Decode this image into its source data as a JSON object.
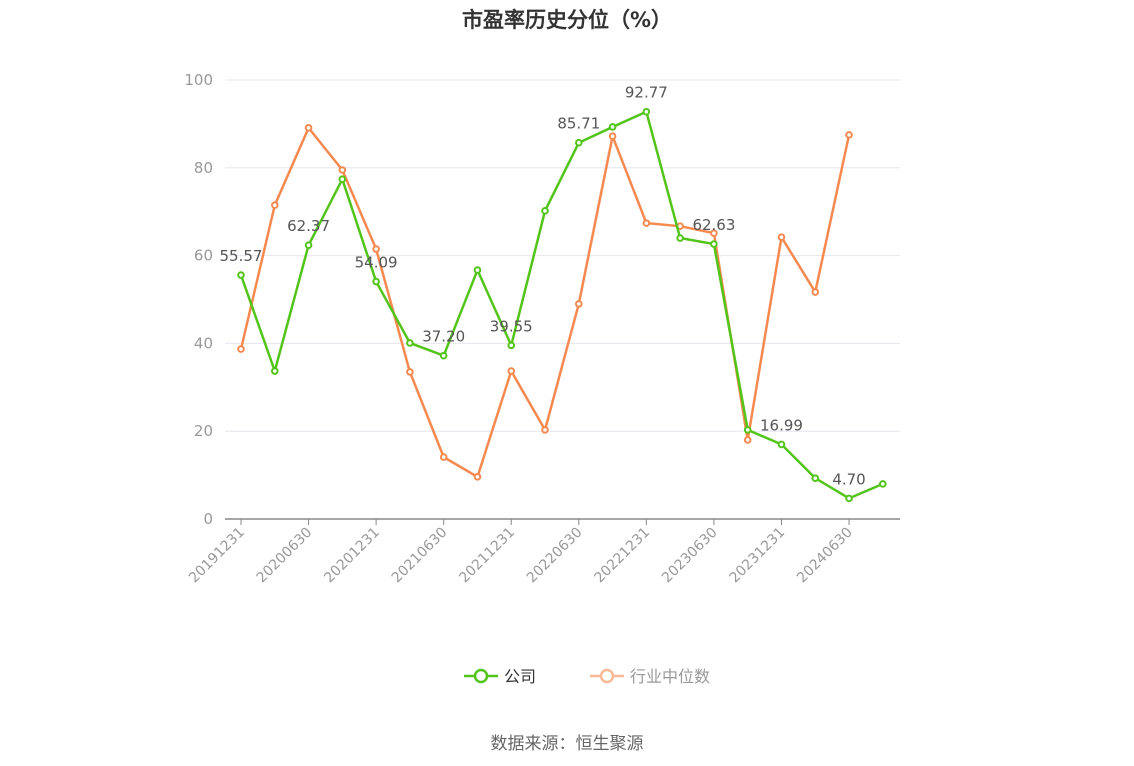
{
  "chart_data": {
    "type": "line",
    "title": "市盈率历史分位（%）",
    "source": "数据来源：恒生聚源",
    "ylim": [
      0,
      100
    ],
    "yticks": [
      0,
      20,
      40,
      60,
      80,
      100
    ],
    "grid": true,
    "legend_position": "bottom",
    "x": [
      "20191231",
      "20200331",
      "20200630",
      "20200930",
      "20201231",
      "20210331",
      "20210630",
      "20210930",
      "20211231",
      "20220331",
      "20220630",
      "20220930",
      "20221231",
      "20230331",
      "20230630",
      "20230930",
      "20231231",
      "20240331",
      "20240630",
      "20240930"
    ],
    "xtick_labels": [
      "20191231",
      "20200630",
      "20201231",
      "20210630",
      "20211231",
      "20220630",
      "20221231",
      "20230630",
      "20231231",
      "20240630"
    ],
    "series": [
      {
        "name": "公司",
        "color": "#52c41a",
        "values": [
          55.57,
          33.7,
          62.37,
          77.4,
          54.09,
          40.1,
          37.2,
          56.7,
          39.55,
          70.2,
          85.71,
          89.3,
          92.77,
          64.0,
          62.63,
          20.3,
          16.99,
          9.3,
          4.7,
          8.0
        ],
        "labeled": [
          55.57,
          null,
          62.37,
          null,
          54.09,
          null,
          37.2,
          null,
          39.55,
          null,
          85.71,
          null,
          92.77,
          null,
          62.63,
          null,
          16.99,
          null,
          4.7,
          null
        ]
      },
      {
        "name": "行业中位数",
        "color": "#f5894f",
        "values": [
          38.7,
          71.5,
          89.1,
          79.5,
          61.5,
          33.5,
          14.1,
          9.6,
          33.7,
          20.3,
          49.0,
          87.2,
          67.4,
          66.7,
          65.1,
          18.0,
          64.2,
          51.7,
          87.5,
          null
        ]
      }
    ]
  }
}
